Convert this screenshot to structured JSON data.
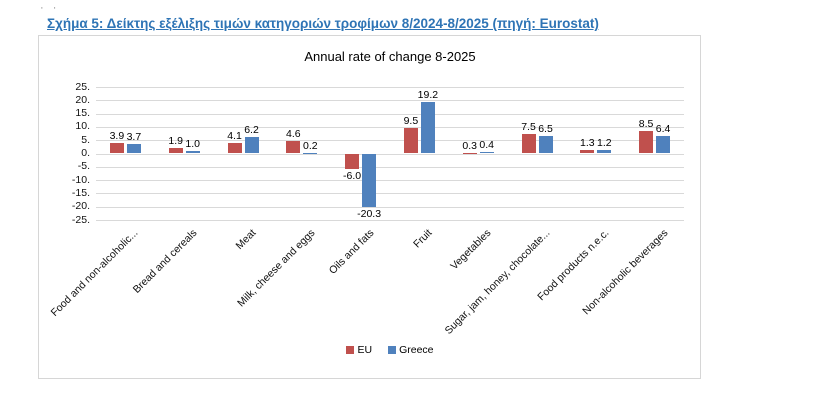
{
  "page": {
    "stray_marks": "· ·",
    "caption": "Σχήμα 5: Δείκτης εξέλιξης τιμών κατηγοριών τροφίμων 8/2024-8/2025 (πηγή: Eurostat)"
  },
  "colors": {
    "caption_blue": "#2E74B5",
    "gridline": "#D9D9D9",
    "chart_border": "#D6D6D6",
    "eu_red": "#C0504D",
    "greece_blue": "#4F81BD"
  },
  "chart_data": {
    "type": "bar",
    "title": "Annual rate of change 8-2025",
    "categories": [
      "Food and non-alcoholic...",
      "Bread and cereals",
      "Meat",
      "Milk, cheese and eggs",
      "Oils and fats",
      "Fruit",
      "Vegetables",
      "Sugar, jam, honey, chocolate...",
      "Food products n.e.c.",
      "Non-alcoholic beverages"
    ],
    "series": [
      {
        "name": "EU",
        "color": "#C0504D",
        "values": [
          3.9,
          1.9,
          4.1,
          4.6,
          -6.0,
          9.5,
          0.3,
          7.5,
          1.3,
          8.5
        ]
      },
      {
        "name": "Greece",
        "color": "#4F81BD",
        "values": [
          3.7,
          1.0,
          6.2,
          0.2,
          -20.3,
          19.2,
          0.4,
          6.5,
          1.2,
          6.4
        ]
      }
    ],
    "ylim": [
      -25,
      25
    ],
    "ytick_step": 5,
    "ytick_labels": [
      "25.",
      "20.",
      "15.",
      "10.",
      "5.",
      "0.",
      "-5.",
      "-10.",
      "-15.",
      "-20.",
      "-25."
    ],
    "grid": true,
    "data_labels": true,
    "data_label_decimals": 1,
    "legend_position": "bottom",
    "xlabel": "",
    "ylabel": ""
  }
}
